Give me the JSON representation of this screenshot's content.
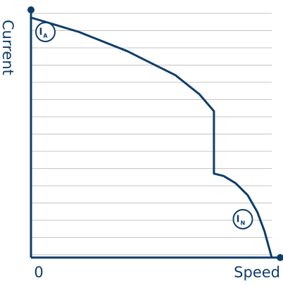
{
  "chart_data": {
    "type": "line",
    "xlabel": "Speed",
    "ylabel": "Current",
    "x_tick_labels": [
      "0"
    ],
    "grid": true,
    "xlim": [
      0,
      1
    ],
    "ylim": [
      0,
      1
    ],
    "series": [
      {
        "x": [
          0,
          0.1,
          0.2,
          0.3,
          0.4,
          0.5,
          0.6,
          0.7,
          0.76,
          0.76,
          0.8,
          0.85,
          0.9,
          0.94,
          0.97,
          1.0
        ],
        "values": [
          1.0,
          0.97,
          0.94,
          0.9,
          0.86,
          0.81,
          0.76,
          0.68,
          0.61,
          0.35,
          0.34,
          0.31,
          0.26,
          0.19,
          0.11,
          0.0
        ]
      }
    ],
    "annotations": [
      {
        "main": "I",
        "sub": "A",
        "x": 0.06,
        "y": 0.94
      },
      {
        "main": "I",
        "sub": "N",
        "x": 0.88,
        "y": 0.16
      }
    ]
  },
  "colors": {
    "axis": "#0e3d6a",
    "curve": "#0e3d6a",
    "grid": "#c4c4c4",
    "text": "#0e3d6a"
  }
}
